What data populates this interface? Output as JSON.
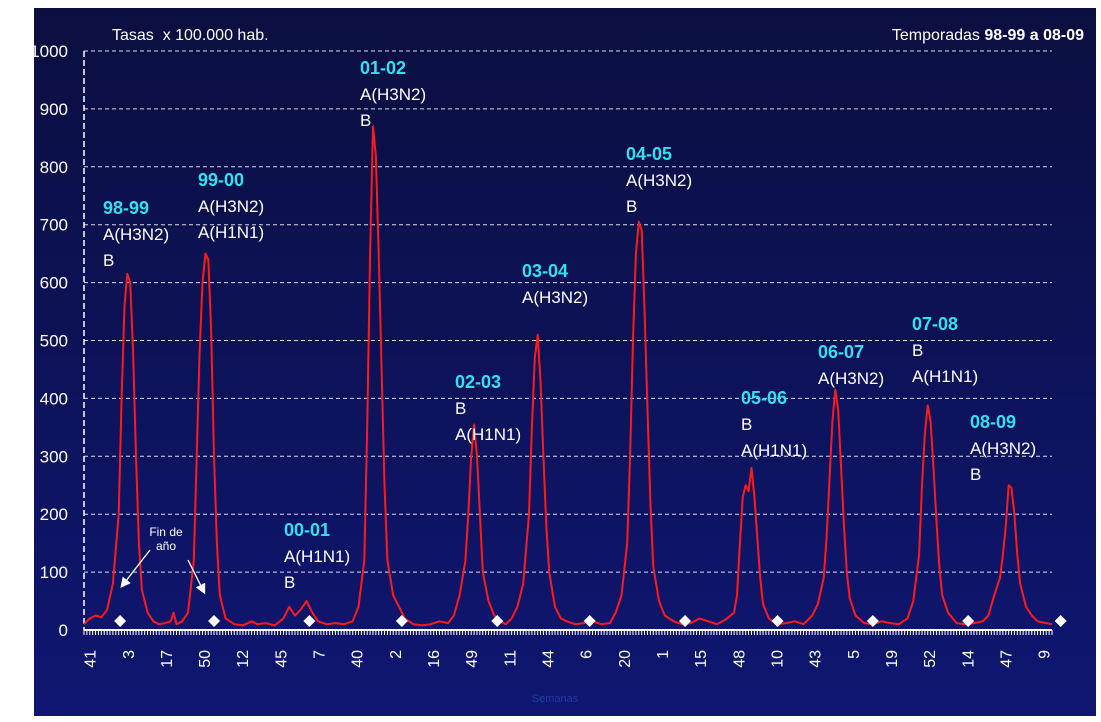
{
  "chart_data": {
    "type": "line",
    "title_left": "Tasas  x 100.000 hab.",
    "title_right_prefix": "Temporadas ",
    "title_right_bold": "98-99 a 08-09",
    "xlabel": "Semanas",
    "ylabel": "",
    "ylim": [
      0,
      1000
    ],
    "yticks": [
      0,
      100,
      200,
      300,
      400,
      500,
      600,
      700,
      800,
      900,
      1000
    ],
    "x_tick_labels": [
      "41",
      "3",
      "17",
      "50",
      "12",
      "45",
      "7",
      "40",
      "2",
      "16",
      "49",
      "11",
      "44",
      "6",
      "20",
      "1",
      "15",
      "48",
      "10",
      "43",
      "5",
      "19",
      "52",
      "14",
      "47",
      "9"
    ],
    "grid": "horizontal-dashed",
    "colors": {
      "background_top": "#0b0f40",
      "background_bottom": "#0f1672",
      "line": "#ff1a1a",
      "season_label": "#33e0f0",
      "text": "#ffffff",
      "grid": "#ffffff",
      "markers": "#ffffff"
    },
    "series": [
      {
        "color": "#ff1a1a",
        "points": [
          [
            0,
            10
          ],
          [
            2,
            20
          ],
          [
            4,
            25
          ],
          [
            6,
            22
          ],
          [
            8,
            35
          ],
          [
            10,
            80
          ],
          [
            12,
            200
          ],
          [
            13,
            400
          ],
          [
            14,
            560
          ],
          [
            15,
            615
          ],
          [
            16,
            600
          ],
          [
            17,
            480
          ],
          [
            18,
            300
          ],
          [
            19,
            150
          ],
          [
            20,
            70
          ],
          [
            22,
            30
          ],
          [
            24,
            15
          ],
          [
            26,
            10
          ],
          [
            28,
            12
          ],
          [
            30,
            15
          ],
          [
            31,
            30
          ],
          [
            32,
            10
          ],
          [
            34,
            15
          ],
          [
            36,
            30
          ],
          [
            38,
            120
          ],
          [
            39,
            300
          ],
          [
            40,
            480
          ],
          [
            41,
            600
          ],
          [
            42,
            650
          ],
          [
            43,
            640
          ],
          [
            44,
            520
          ],
          [
            45,
            300
          ],
          [
            46,
            150
          ],
          [
            47,
            60
          ],
          [
            49,
            20
          ],
          [
            52,
            10
          ],
          [
            55,
            8
          ],
          [
            58,
            15
          ],
          [
            60,
            10
          ],
          [
            63,
            12
          ],
          [
            66,
            8
          ],
          [
            69,
            20
          ],
          [
            71,
            40
          ],
          [
            73,
            25
          ],
          [
            75,
            35
          ],
          [
            77,
            50
          ],
          [
            79,
            30
          ],
          [
            81,
            15
          ],
          [
            84,
            10
          ],
          [
            87,
            12
          ],
          [
            90,
            10
          ],
          [
            93,
            15
          ],
          [
            95,
            40
          ],
          [
            97,
            120
          ],
          [
            98,
            350
          ],
          [
            99,
            650
          ],
          [
            100,
            870
          ],
          [
            101,
            820
          ],
          [
            102,
            650
          ],
          [
            103,
            450
          ],
          [
            104,
            250
          ],
          [
            105,
            120
          ],
          [
            107,
            60
          ],
          [
            109,
            40
          ],
          [
            111,
            20
          ],
          [
            114,
            10
          ],
          [
            117,
            8
          ],
          [
            120,
            10
          ],
          [
            123,
            15
          ],
          [
            126,
            12
          ],
          [
            128,
            25
          ],
          [
            130,
            60
          ],
          [
            132,
            120
          ],
          [
            133,
            200
          ],
          [
            134,
            300
          ],
          [
            135,
            355
          ],
          [
            136,
            300
          ],
          [
            137,
            200
          ],
          [
            138,
            100
          ],
          [
            140,
            50
          ],
          [
            142,
            25
          ],
          [
            144,
            15
          ],
          [
            146,
            10
          ],
          [
            148,
            20
          ],
          [
            150,
            40
          ],
          [
            152,
            80
          ],
          [
            154,
            200
          ],
          [
            155,
            350
          ],
          [
            156,
            470
          ],
          [
            157,
            510
          ],
          [
            158,
            430
          ],
          [
            159,
            300
          ],
          [
            160,
            180
          ],
          [
            161,
            100
          ],
          [
            163,
            40
          ],
          [
            165,
            20
          ],
          [
            167,
            15
          ],
          [
            170,
            10
          ],
          [
            173,
            12
          ],
          [
            176,
            15
          ],
          [
            179,
            10
          ],
          [
            182,
            12
          ],
          [
            184,
            30
          ],
          [
            186,
            60
          ],
          [
            188,
            150
          ],
          [
            189,
            300
          ],
          [
            190,
            500
          ],
          [
            191,
            650
          ],
          [
            192,
            705
          ],
          [
            193,
            690
          ],
          [
            194,
            550
          ],
          [
            195,
            380
          ],
          [
            196,
            220
          ],
          [
            197,
            110
          ],
          [
            199,
            50
          ],
          [
            201,
            25
          ],
          [
            204,
            15
          ],
          [
            207,
            10
          ],
          [
            210,
            12
          ],
          [
            213,
            20
          ],
          [
            216,
            15
          ],
          [
            219,
            10
          ],
          [
            222,
            18
          ],
          [
            225,
            30
          ],
          [
            226,
            60
          ],
          [
            227,
            150
          ],
          [
            228,
            230
          ],
          [
            229,
            250
          ],
          [
            230,
            240
          ],
          [
            231,
            280
          ],
          [
            232,
            230
          ],
          [
            233,
            160
          ],
          [
            234,
            90
          ],
          [
            235,
            45
          ],
          [
            237,
            20
          ],
          [
            240,
            10
          ],
          [
            243,
            12
          ],
          [
            246,
            15
          ],
          [
            249,
            10
          ],
          [
            252,
            25
          ],
          [
            254,
            45
          ],
          [
            256,
            90
          ],
          [
            257,
            160
          ],
          [
            258,
            260
          ],
          [
            259,
            360
          ],
          [
            260,
            415
          ],
          [
            261,
            380
          ],
          [
            262,
            280
          ],
          [
            263,
            180
          ],
          [
            264,
            100
          ],
          [
            265,
            55
          ],
          [
            267,
            25
          ],
          [
            270,
            12
          ],
          [
            273,
            10
          ],
          [
            276,
            15
          ],
          [
            279,
            12
          ],
          [
            282,
            10
          ],
          [
            285,
            20
          ],
          [
            287,
            50
          ],
          [
            289,
            130
          ],
          [
            290,
            250
          ],
          [
            291,
            340
          ],
          [
            292,
            388
          ],
          [
            293,
            360
          ],
          [
            294,
            280
          ],
          [
            295,
            190
          ],
          [
            296,
            110
          ],
          [
            297,
            60
          ],
          [
            299,
            30
          ],
          [
            302,
            12
          ],
          [
            305,
            10
          ],
          [
            308,
            12
          ],
          [
            311,
            15
          ],
          [
            313,
            25
          ],
          [
            315,
            60
          ],
          [
            317,
            90
          ],
          [
            318,
            130
          ],
          [
            319,
            180
          ],
          [
            320,
            250
          ],
          [
            321,
            245
          ],
          [
            322,
            200
          ],
          [
            323,
            130
          ],
          [
            324,
            80
          ],
          [
            326,
            40
          ],
          [
            328,
            25
          ],
          [
            330,
            15
          ],
          [
            333,
            12
          ],
          [
            335,
            10
          ]
        ]
      }
    ],
    "x_range": [
      0,
      335
    ],
    "year_end_markers": [
      {
        "x": 12.5,
        "y": 50
      },
      {
        "x": 45,
        "y": 50
      },
      {
        "x": 78,
        "y": 50
      },
      {
        "x": 110,
        "y": 50
      },
      {
        "x": 143,
        "y": 50
      },
      {
        "x": 175,
        "y": 50
      },
      {
        "x": 208,
        "y": 50
      },
      {
        "x": 240,
        "y": 50
      },
      {
        "x": 273,
        "y": 50
      },
      {
        "x": 306,
        "y": 50
      },
      {
        "x": 338,
        "y": 50
      }
    ],
    "annotation_text": "Fin de\naño",
    "seasons": [
      {
        "label": "98-99",
        "strains": [
          "A(H3N2)",
          "B"
        ]
      },
      {
        "label": "99-00",
        "strains": [
          "A(H3N2)",
          "A(H1N1)"
        ]
      },
      {
        "label": "00-01",
        "strains": [
          "A(H1N1)",
          "B"
        ]
      },
      {
        "label": "01-02",
        "strains": [
          "A(H3N2)",
          "B"
        ]
      },
      {
        "label": "02-03",
        "strains": [
          "B",
          "A(H1N1)"
        ]
      },
      {
        "label": "03-04",
        "strains": [
          "A(H3N2)"
        ]
      },
      {
        "label": "04-05",
        "strains": [
          "A(H3N2)",
          "B"
        ]
      },
      {
        "label": "05-06",
        "strains": [
          "B",
          "A(H1N1)"
        ]
      },
      {
        "label": "06-07",
        "strains": [
          "A(H3N2)"
        ]
      },
      {
        "label": "07-08",
        "strains": [
          "B",
          "A(H1N1)"
        ]
      },
      {
        "label": "08-09",
        "strains": [
          "A(H3N2)",
          "B"
        ]
      }
    ]
  }
}
